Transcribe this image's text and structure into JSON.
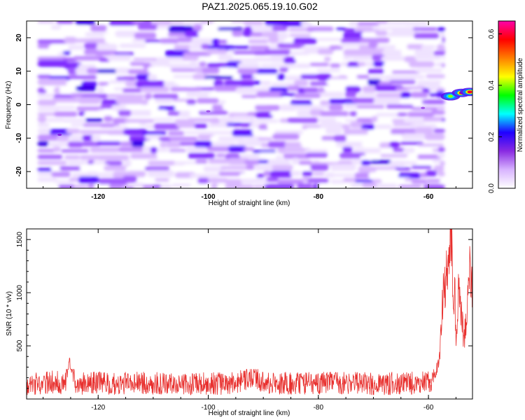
{
  "title": "PAZ1.2025.065.19.10.G02",
  "chart_data": [
    {
      "type": "heatmap",
      "xlabel": "Height of straight line (km)",
      "ylabel": "Frequency (Hz)",
      "xlim": [
        -133,
        -52
      ],
      "ylim": [
        -25,
        25
      ],
      "xticks": [
        -120,
        -100,
        -80,
        -60
      ],
      "yticks": [
        -20,
        -10,
        0,
        10,
        20
      ],
      "colorbar": {
        "label": "Normalized spectral amplitude",
        "range": [
          0.0,
          0.65
        ],
        "ticks": [
          0.0,
          0.2,
          0.4,
          0.6
        ],
        "colors": [
          "#ffffff",
          "#d8b4ff",
          "#8a2be2",
          "#2000ff",
          "#00ffff",
          "#00ff00",
          "#ffff00",
          "#ff7f00",
          "#ff0000",
          "#ff00aa"
        ]
      },
      "noise_region": {
        "x": [
          -131,
          -57
        ],
        "y": [
          -25,
          25
        ],
        "typical_amplitude": [
          0.0,
          0.1
        ]
      },
      "hotspots": [
        {
          "x": -56,
          "y": 2.5,
          "value": 0.4
        },
        {
          "x": -54,
          "y": 3.5,
          "value": 0.6
        },
        {
          "x": -52.5,
          "y": 3.8,
          "value": 0.6
        },
        {
          "x": -127,
          "y": -9,
          "value": 0.15
        },
        {
          "x": -100,
          "y": -2,
          "value": 0.12
        },
        {
          "x": -61,
          "y": -1,
          "value": 0.12
        }
      ]
    },
    {
      "type": "line",
      "xlabel": "Height of straight line (km)",
      "ylabel": "SNR (10 * v/v)",
      "xlim": [
        -133,
        -52
      ],
      "ylim": [
        0,
        1600
      ],
      "xticks": [
        -120,
        -100,
        -80,
        -60
      ],
      "yticks": [
        500,
        1000,
        1500
      ],
      "color": "#e8302e",
      "series": [
        {
          "x": [
            -133,
            -130,
            -128,
            -126,
            -125.2,
            -124,
            -120,
            -115,
            -110,
            -105,
            -100,
            -95,
            -92,
            -90,
            -85,
            -80,
            -75,
            -70,
            -65,
            -62,
            -60,
            -59,
            -58,
            -57.5,
            -57,
            -56.5,
            -56,
            -55.7,
            -55.5,
            -55.2,
            -55,
            -54.7,
            -54.5,
            -54,
            -53.5,
            -53,
            -52.5,
            -52
          ],
          "y": [
            140,
            150,
            160,
            150,
            390,
            140,
            150,
            145,
            150,
            140,
            150,
            145,
            220,
            150,
            150,
            145,
            150,
            140,
            150,
            150,
            160,
            200,
            350,
            900,
            1100,
            1200,
            1580,
            1350,
            700,
            1100,
            400,
            900,
            1000,
            750,
            550,
            850,
            1200,
            1050
          ]
        }
      ],
      "noise_range": [
        40,
        280
      ]
    }
  ]
}
